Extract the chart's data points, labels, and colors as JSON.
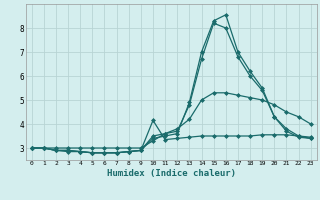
{
  "xlabel": "Humidex (Indice chaleur)",
  "ylabel": "",
  "bg_color": "#d4eeee",
  "grid_color": "#b8d4d4",
  "line_color": "#1a6b6b",
  "xlim": [
    -0.5,
    23.5
  ],
  "ylim": [
    2.5,
    9.0
  ],
  "yticks": [
    3,
    4,
    5,
    6,
    7,
    8
  ],
  "xticks": [
    0,
    1,
    2,
    3,
    4,
    5,
    6,
    7,
    8,
    9,
    10,
    11,
    12,
    13,
    14,
    15,
    16,
    17,
    18,
    19,
    20,
    21,
    22,
    23
  ],
  "series": [
    {
      "x": [
        0,
        1,
        2,
        3,
        4,
        5,
        6,
        7,
        8,
        9,
        10,
        11,
        12,
        13,
        14,
        15,
        16,
        17,
        18,
        19,
        20,
        21,
        22,
        23
      ],
      "y": [
        3.0,
        3.0,
        3.0,
        3.0,
        3.0,
        3.0,
        3.0,
        3.0,
        3.0,
        3.0,
        3.3,
        3.6,
        3.8,
        4.2,
        5.0,
        5.3,
        5.3,
        5.2,
        5.1,
        5.0,
        4.8,
        4.5,
        4.3,
        4.0
      ]
    },
    {
      "x": [
        0,
        1,
        2,
        3,
        4,
        5,
        6,
        7,
        8,
        9,
        10,
        11,
        12,
        13,
        14,
        15,
        16,
        17,
        18,
        19,
        20,
        21,
        22,
        23
      ],
      "y": [
        3.0,
        3.0,
        2.9,
        2.85,
        2.85,
        2.8,
        2.8,
        2.8,
        2.85,
        2.9,
        4.15,
        3.35,
        3.4,
        3.45,
        3.5,
        3.5,
        3.5,
        3.5,
        3.5,
        3.55,
        3.55,
        3.55,
        3.5,
        3.45
      ]
    },
    {
      "x": [
        0,
        1,
        2,
        3,
        4,
        5,
        6,
        7,
        8,
        9,
        10,
        11,
        12,
        13,
        14,
        15,
        16,
        17,
        18,
        19,
        20,
        21,
        22,
        23
      ],
      "y": [
        3.0,
        3.0,
        2.9,
        2.9,
        2.85,
        2.8,
        2.8,
        2.8,
        2.85,
        2.9,
        3.5,
        3.6,
        3.7,
        4.8,
        6.7,
        8.2,
        8.0,
        6.8,
        6.0,
        5.4,
        4.3,
        3.7,
        3.45,
        3.4
      ]
    },
    {
      "x": [
        0,
        1,
        2,
        3,
        4,
        5,
        6,
        7,
        8,
        9,
        10,
        11,
        12,
        13,
        14,
        15,
        16,
        17,
        18,
        19,
        20,
        21,
        22,
        23
      ],
      "y": [
        3.0,
        3.0,
        2.9,
        2.9,
        2.85,
        2.8,
        2.8,
        2.8,
        2.85,
        2.9,
        3.4,
        3.5,
        3.6,
        4.9,
        7.0,
        8.3,
        8.55,
        7.0,
        6.2,
        5.5,
        4.3,
        3.8,
        3.5,
        3.4
      ]
    }
  ]
}
